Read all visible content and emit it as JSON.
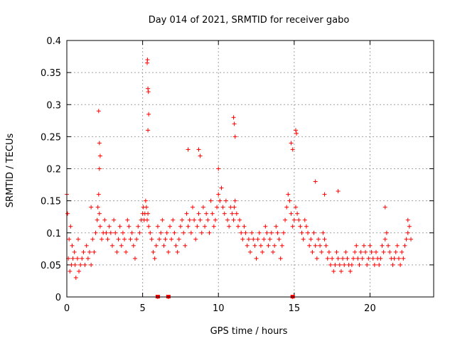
{
  "chart_data": {
    "type": "scatter",
    "title": "Day 014 of 2021, SRMTID for receiver gabo",
    "xlabel": "GPS time / hours",
    "ylabel": "SRMTID / TECUs",
    "xlim": [
      0,
      24.2
    ],
    "ylim": [
      0,
      0.4
    ],
    "grid": true,
    "marker": "+",
    "xticks": [
      0,
      5,
      10,
      15,
      20
    ],
    "xtick_labels": [
      "0",
      "5",
      "10",
      "15",
      "20"
    ],
    "yticks": [
      0,
      0.05,
      0.1,
      0.15,
      0.2,
      0.25,
      0.3,
      0.35,
      0.4
    ],
    "ytick_labels": [
      "0",
      "0.05",
      "0.1",
      "0.15",
      "0.2",
      "0.25",
      "0.3",
      "0.35",
      "0.4"
    ],
    "series": [
      {
        "name": "SRMTID",
        "color": "#ff0000",
        "x": [
          0.0,
          0.05,
          0.1,
          0.15,
          0.2,
          0.25,
          0.3,
          0.35,
          0.4,
          0.5,
          0.55,
          0.6,
          0.7,
          0.75,
          0.8,
          0.9,
          1.0,
          1.1,
          1.2,
          1.3,
          1.4,
          1.5,
          1.6,
          1.7,
          1.8,
          1.9,
          2.0,
          2.05,
          2.1,
          2.15,
          2.2,
          2.3,
          2.4,
          2.5,
          2.6,
          2.7,
          2.8,
          2.9,
          3.0,
          3.1,
          3.2,
          3.3,
          3.4,
          3.5,
          3.6,
          3.7,
          3.8,
          3.9,
          4.0,
          4.1,
          4.2,
          4.3,
          4.4,
          4.5,
          4.6,
          4.7,
          4.8,
          4.9,
          5.0,
          5.05,
          5.1,
          5.15,
          5.2,
          5.25,
          5.3,
          5.35,
          5.4,
          5.5,
          5.6,
          5.7,
          5.8,
          5.9,
          6.0,
          6.1,
          6.2,
          6.3,
          6.4,
          6.5,
          6.6,
          6.7,
          6.8,
          6.9,
          7.0,
          7.1,
          7.2,
          7.3,
          7.4,
          7.5,
          7.6,
          7.7,
          7.8,
          7.9,
          8.0,
          8.1,
          8.2,
          8.3,
          8.4,
          8.5,
          8.6,
          8.7,
          8.8,
          8.9,
          9.0,
          9.1,
          9.2,
          9.3,
          9.4,
          9.5,
          9.6,
          9.7,
          9.8,
          9.9,
          10.0,
          10.1,
          10.2,
          10.3,
          10.4,
          10.5,
          10.6,
          10.7,
          10.8,
          10.9,
          11.0,
          11.05,
          11.1,
          11.2,
          11.3,
          11.4,
          11.5,
          11.6,
          11.7,
          11.8,
          11.9,
          12.0,
          12.1,
          12.2,
          12.3,
          12.4,
          12.5,
          12.6,
          12.7,
          12.8,
          12.9,
          13.0,
          13.1,
          13.2,
          13.3,
          13.4,
          13.5,
          13.6,
          13.7,
          13.8,
          13.9,
          14.0,
          14.1,
          14.2,
          14.3,
          14.4,
          14.5,
          14.6,
          14.7,
          14.8,
          14.9,
          15.0,
          15.1,
          15.2,
          15.3,
          15.4,
          15.5,
          15.6,
          15.7,
          15.8,
          15.9,
          16.0,
          16.1,
          16.2,
          16.3,
          16.4,
          16.5,
          16.6,
          16.7,
          16.8,
          16.9,
          17.0,
          17.1,
          17.2,
          17.3,
          17.4,
          17.5,
          17.6,
          17.7,
          17.8,
          17.9,
          18.0,
          18.1,
          18.2,
          18.3,
          18.4,
          18.5,
          18.6,
          18.7,
          18.8,
          18.9,
          19.0,
          19.1,
          19.2,
          19.3,
          19.4,
          19.5,
          19.6,
          19.7,
          19.8,
          19.9,
          20.0,
          20.1,
          20.2,
          20.3,
          20.4,
          20.5,
          20.6,
          20.7,
          20.8,
          20.9,
          21.0,
          21.1,
          21.2,
          21.3,
          21.4,
          21.5,
          21.6,
          21.7,
          21.8,
          21.9,
          22.0,
          22.1,
          22.2,
          22.3,
          22.4,
          22.5,
          22.6,
          22.7,
          2.1,
          2.15,
          2.2,
          5.3,
          5.32,
          5.35,
          5.38,
          5.4,
          11.0,
          11.05,
          11.1,
          15.1,
          15.15,
          14.8,
          14.9,
          2.15,
          5.35,
          6.0,
          6.7,
          14.9,
          8.0,
          8.7,
          8.8,
          10.0,
          16.4,
          17.0,
          17.9,
          21.0,
          22.5,
          1.6
        ],
        "y": [
          0.16,
          0.13,
          0.06,
          0.09,
          0.04,
          0.11,
          0.05,
          0.08,
          0.06,
          0.07,
          0.05,
          0.03,
          0.06,
          0.09,
          0.04,
          0.05,
          0.06,
          0.07,
          0.05,
          0.08,
          0.06,
          0.07,
          0.05,
          0.09,
          0.07,
          0.1,
          0.12,
          0.14,
          0.16,
          0.13,
          0.11,
          0.09,
          0.1,
          0.12,
          0.1,
          0.09,
          0.11,
          0.1,
          0.08,
          0.12,
          0.1,
          0.07,
          0.09,
          0.11,
          0.08,
          0.1,
          0.09,
          0.07,
          0.12,
          0.11,
          0.09,
          0.1,
          0.08,
          0.06,
          0.09,
          0.11,
          0.1,
          0.12,
          0.13,
          0.14,
          0.12,
          0.13,
          0.15,
          0.14,
          0.12,
          0.13,
          0.11,
          0.1,
          0.09,
          0.07,
          0.06,
          0.08,
          0.11,
          0.09,
          0.1,
          0.12,
          0.08,
          0.09,
          0.1,
          0.07,
          0.11,
          0.09,
          0.12,
          0.1,
          0.08,
          0.07,
          0.09,
          0.11,
          0.12,
          0.1,
          0.08,
          0.13,
          0.11,
          0.12,
          0.1,
          0.14,
          0.12,
          0.09,
          0.11,
          0.13,
          0.12,
          0.1,
          0.14,
          0.11,
          0.13,
          0.12,
          0.1,
          0.15,
          0.13,
          0.11,
          0.12,
          0.14,
          0.16,
          0.15,
          0.17,
          0.14,
          0.13,
          0.15,
          0.12,
          0.11,
          0.14,
          0.13,
          0.12,
          0.14,
          0.15,
          0.13,
          0.11,
          0.12,
          0.1,
          0.09,
          0.11,
          0.1,
          0.08,
          0.09,
          0.07,
          0.1,
          0.09,
          0.08,
          0.06,
          0.09,
          0.1,
          0.08,
          0.07,
          0.09,
          0.11,
          0.1,
          0.08,
          0.09,
          0.1,
          0.07,
          0.08,
          0.11,
          0.1,
          0.09,
          0.06,
          0.08,
          0.1,
          0.12,
          0.14,
          0.16,
          0.15,
          0.13,
          0.11,
          0.12,
          0.14,
          0.13,
          0.12,
          0.11,
          0.1,
          0.09,
          0.12,
          0.11,
          0.1,
          0.08,
          0.09,
          0.07,
          0.1,
          0.08,
          0.06,
          0.09,
          0.08,
          0.07,
          0.1,
          0.09,
          0.08,
          0.06,
          0.07,
          0.05,
          0.06,
          0.04,
          0.05,
          0.07,
          0.06,
          0.05,
          0.04,
          0.06,
          0.05,
          0.07,
          0.06,
          0.05,
          0.04,
          0.05,
          0.06,
          0.07,
          0.08,
          0.06,
          0.05,
          0.07,
          0.06,
          0.08,
          0.07,
          0.05,
          0.06,
          0.08,
          0.07,
          0.06,
          0.05,
          0.07,
          0.06,
          0.05,
          0.06,
          0.08,
          0.07,
          0.09,
          0.1,
          0.08,
          0.07,
          0.06,
          0.05,
          0.06,
          0.07,
          0.08,
          0.06,
          0.05,
          0.07,
          0.06,
          0.08,
          0.09,
          0.1,
          0.11,
          0.09,
          0.29,
          0.24,
          0.22,
          0.365,
          0.37,
          0.325,
          0.32,
          0.285,
          0.28,
          0.27,
          0.25,
          0.26,
          0.255,
          0.24,
          0.23,
          0.2,
          0.26,
          0.0,
          0.0,
          0.0,
          0.23,
          0.23,
          0.22,
          0.2,
          0.18,
          0.16,
          0.165,
          0.14,
          0.12,
          0.14
        ]
      }
    ],
    "zero_markers_x": [
      6.0,
      6.7,
      14.9
    ]
  }
}
